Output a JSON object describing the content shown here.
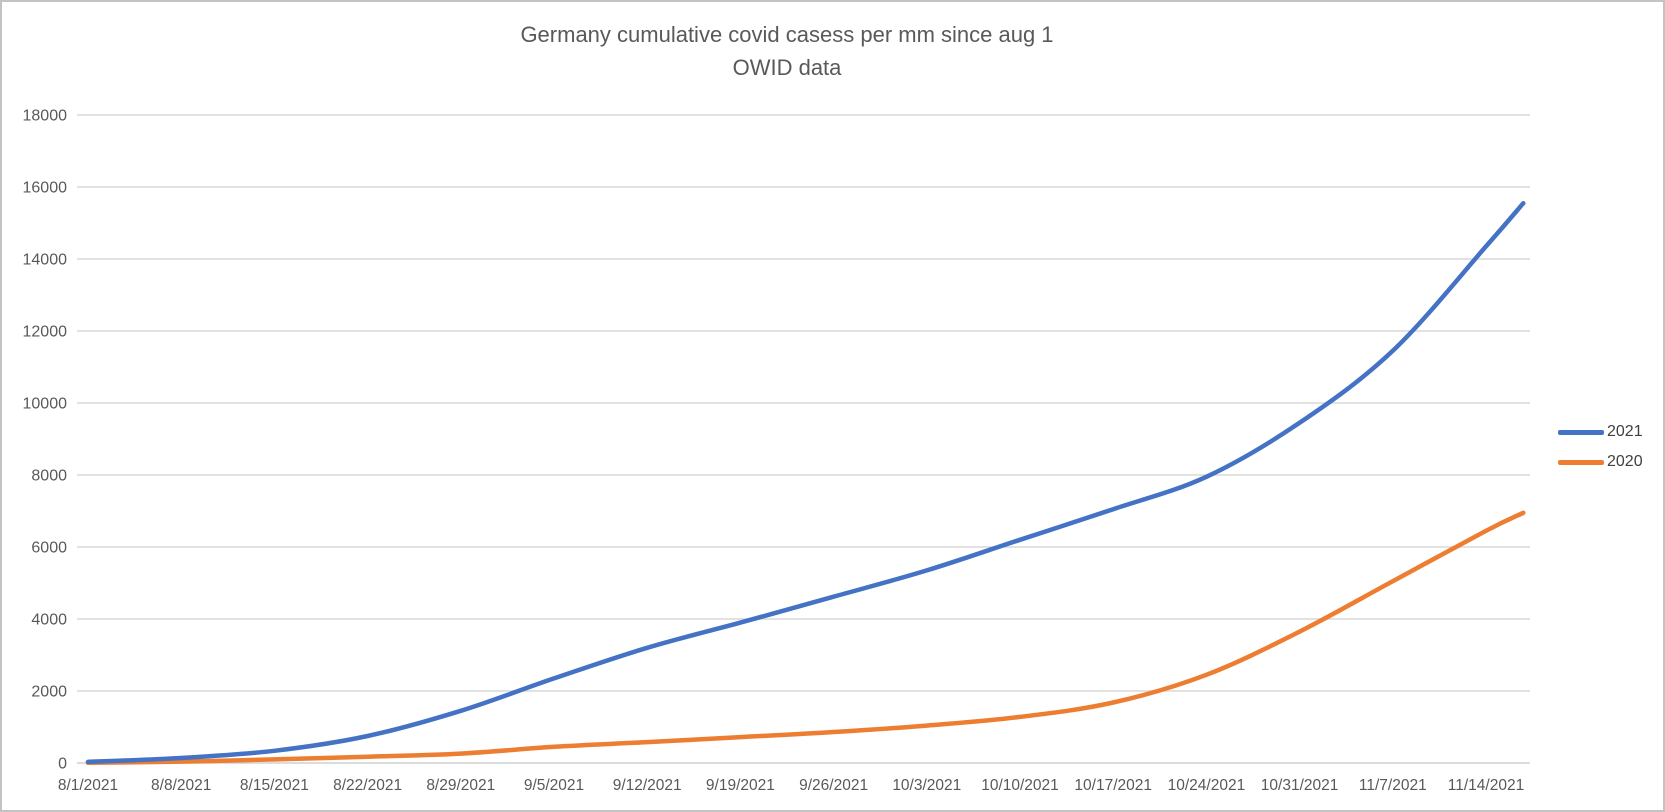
{
  "window": {
    "background": "#ffffff"
  },
  "title": {
    "line1": "Germany cumulative covid casess per mm since aug 1",
    "line2": "OWID data"
  },
  "legend": {
    "items": [
      {
        "label": "2021",
        "color": "#4472C4"
      },
      {
        "label": "2020",
        "color": "#ED7D31"
      }
    ]
  },
  "styles": {
    "grid_color": "#D9D9D9",
    "axis_line_color": "#D0D0D0",
    "tick_color": "#595959",
    "title_color": "#595959",
    "legend_text_color": "#404040",
    "frame_border_color": "#C3C3C3",
    "series_2021_color": "#4472C4",
    "series_2020_color": "#ED7D31"
  },
  "chart_data": {
    "type": "line",
    "title": "Germany cumulative covid casess per mm since aug 1",
    "subtitle": "OWID data",
    "legend_position": "right",
    "grid": true,
    "ylim": [
      0,
      18000
    ],
    "y_step": 2000,
    "y_tick_labels": [
      "0",
      "2000",
      "4000",
      "6000",
      "8000",
      "10000",
      "12000",
      "14000",
      "16000",
      "18000"
    ],
    "x_tick_labels": [
      "8/1/2021",
      "8/8/2021",
      "8/15/2021",
      "8/22/2021",
      "8/29/2021",
      "9/5/2021",
      "9/12/2021",
      "9/19/2021",
      "9/26/2021",
      "10/3/2021",
      "10/10/2021",
      "10/17/2021",
      "10/24/2021",
      "10/31/2021",
      "11/7/2021",
      "11/14/2021"
    ],
    "x_points": {
      "dates": [
        "8/1/2021",
        "8/8/2021",
        "8/15/2021",
        "8/22/2021",
        "8/29/2021",
        "9/5/2021",
        "9/12/2021",
        "9/19/2021",
        "9/26/2021",
        "10/3/2021",
        "10/10/2021",
        "10/17/2021",
        "10/24/2021",
        "10/31/2021",
        "11/7/2021",
        "11/14/2021",
        "11/16/2021"
      ],
      "day_offsets": [
        0,
        7,
        14,
        21,
        28,
        35,
        42,
        49,
        56,
        63,
        70,
        77,
        84,
        91,
        98,
        105,
        107.8
      ]
    },
    "series": [
      {
        "name": "2021",
        "color": "#4472C4",
        "values": [
          30,
          140,
          340,
          750,
          1450,
          2350,
          3200,
          3900,
          4620,
          5350,
          6200,
          7050,
          7950,
          9450,
          11450,
          14350,
          15550
        ]
      },
      {
        "name": "2020",
        "color": "#ED7D31",
        "values": [
          5,
          40,
          100,
          175,
          260,
          450,
          580,
          720,
          860,
          1040,
          1280,
          1680,
          2450,
          3650,
          5050,
          6450,
          6950
        ]
      }
    ]
  }
}
